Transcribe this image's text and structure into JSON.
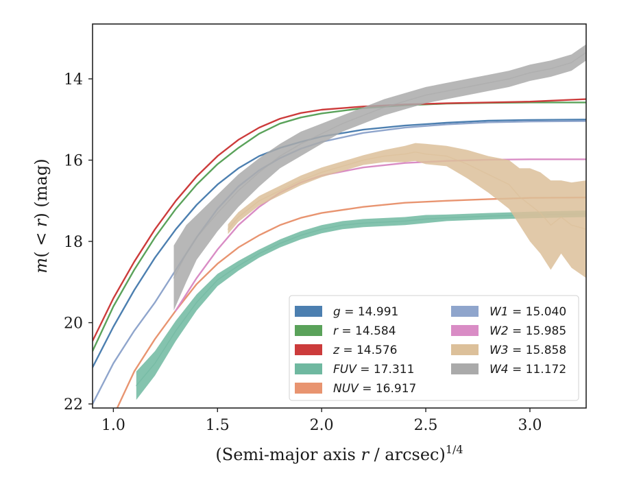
{
  "chart_data": {
    "type": "line",
    "xlabel": "(Semi-major axis r / arcsec)^1/4",
    "ylabel": "m(< r) (mag)",
    "xlim": [
      0.9,
      3.27
    ],
    "ylim": [
      22.1,
      12.65
    ],
    "y_inverted": true,
    "xticks": [
      "1.0",
      "1.5",
      "2.0",
      "2.5",
      "3.0"
    ],
    "yticks": [
      "14",
      "16",
      "18",
      "20",
      "22"
    ],
    "grid": false,
    "legend_placement": "lower-right",
    "series": [
      {
        "name": "g = 14.991",
        "color": "#4c7fb0",
        "style": "line",
        "x": [
          0.9,
          1.0,
          1.1,
          1.2,
          1.3,
          1.4,
          1.5,
          1.6,
          1.7,
          1.8,
          1.9,
          2.0,
          2.2,
          2.4,
          2.6,
          2.8,
          3.0,
          3.27
        ],
        "y": [
          21.1,
          20.1,
          19.2,
          18.4,
          17.7,
          17.1,
          16.6,
          16.2,
          15.9,
          15.7,
          15.55,
          15.42,
          15.25,
          15.15,
          15.08,
          15.03,
          15.01,
          15.0
        ]
      },
      {
        "name": "r = 14.584",
        "color": "#5aa25a",
        "style": "line",
        "x": [
          0.9,
          1.0,
          1.1,
          1.2,
          1.3,
          1.4,
          1.5,
          1.6,
          1.7,
          1.8,
          1.9,
          2.0,
          2.2,
          2.4,
          2.6,
          2.8,
          3.0,
          3.27
        ],
        "y": [
          20.7,
          19.6,
          18.7,
          17.9,
          17.2,
          16.6,
          16.1,
          15.7,
          15.35,
          15.1,
          14.95,
          14.85,
          14.72,
          14.65,
          14.61,
          14.59,
          14.58,
          14.58
        ]
      },
      {
        "name": "z = 14.576",
        "color": "#cc3b3b",
        "style": "line",
        "x": [
          0.9,
          1.0,
          1.1,
          1.2,
          1.3,
          1.4,
          1.5,
          1.6,
          1.7,
          1.8,
          1.9,
          2.0,
          2.2,
          2.4,
          2.6,
          2.8,
          3.0,
          3.27
        ],
        "y": [
          20.45,
          19.4,
          18.5,
          17.7,
          17.0,
          16.4,
          15.9,
          15.5,
          15.2,
          14.98,
          14.84,
          14.76,
          14.68,
          14.63,
          14.6,
          14.58,
          14.56,
          14.5
        ]
      },
      {
        "name": "FUV = 17.311",
        "color": "#6fb8a0",
        "style": "band",
        "x": [
          1.11,
          1.2,
          1.3,
          1.4,
          1.5,
          1.6,
          1.7,
          1.8,
          1.9,
          2.0,
          2.1,
          2.2,
          2.4,
          2.5,
          2.6,
          2.8,
          3.0,
          3.27
        ],
        "y": [
          21.55,
          21.0,
          20.2,
          19.5,
          18.95,
          18.6,
          18.3,
          18.05,
          17.85,
          17.7,
          17.6,
          17.55,
          17.5,
          17.45,
          17.42,
          17.38,
          17.35,
          17.32
        ],
        "err": [
          0.35,
          0.3,
          0.25,
          0.2,
          0.15,
          0.12,
          0.1,
          0.1,
          0.1,
          0.1,
          0.1,
          0.1,
          0.1,
          0.1,
          0.08,
          0.08,
          0.08,
          0.08
        ]
      },
      {
        "name": "NUV = 16.917",
        "color": "#e89470",
        "style": "line",
        "x": [
          1.0,
          1.1,
          1.2,
          1.3,
          1.4,
          1.5,
          1.6,
          1.7,
          1.8,
          1.9,
          2.0,
          2.2,
          2.4,
          2.6,
          2.8,
          3.0,
          3.27
        ],
        "y": [
          22.3,
          21.2,
          20.4,
          19.7,
          19.05,
          18.55,
          18.15,
          17.85,
          17.6,
          17.42,
          17.3,
          17.15,
          17.05,
          17.0,
          16.96,
          16.93,
          16.92
        ]
      },
      {
        "name": "W1 = 15.040",
        "color": "#8fa5cc",
        "style": "line",
        "x": [
          0.9,
          1.0,
          1.1,
          1.2,
          1.3,
          1.4,
          1.5,
          1.6,
          1.7,
          1.8,
          1.9,
          2.0,
          2.2,
          2.4,
          2.6,
          2.8,
          3.0,
          3.27
        ],
        "y": [
          22.0,
          21.0,
          20.2,
          19.5,
          18.7,
          17.9,
          17.2,
          16.65,
          16.25,
          15.95,
          15.72,
          15.55,
          15.33,
          15.2,
          15.12,
          15.07,
          15.05,
          15.04
        ]
      },
      {
        "name": "W2 = 15.985",
        "color": "#d98cc5",
        "style": "line",
        "x": [
          1.3,
          1.4,
          1.5,
          1.6,
          1.7,
          1.8,
          1.9,
          2.0,
          2.2,
          2.4,
          2.6,
          2.8,
          3.0,
          3.27
        ],
        "y": [
          19.7,
          18.9,
          18.2,
          17.6,
          17.15,
          16.8,
          16.55,
          16.38,
          16.18,
          16.07,
          16.02,
          15.99,
          15.98,
          15.98
        ]
      },
      {
        "name": "W3 = 15.858",
        "color": "#dcc09a",
        "style": "band",
        "x": [
          1.55,
          1.6,
          1.7,
          1.8,
          1.9,
          2.0,
          2.1,
          2.2,
          2.3,
          2.4,
          2.45,
          2.5,
          2.6,
          2.7,
          2.8,
          2.9,
          2.95,
          3.0,
          3.05,
          3.1,
          3.15,
          3.2,
          3.27
        ],
        "y": [
          17.7,
          17.4,
          17.0,
          16.75,
          16.5,
          16.3,
          16.15,
          16.0,
          15.9,
          15.85,
          15.8,
          15.85,
          15.9,
          16.1,
          16.35,
          16.6,
          16.9,
          17.1,
          17.3,
          17.6,
          17.4,
          17.6,
          17.7
        ],
        "err": [
          0.12,
          0.12,
          0.12,
          0.12,
          0.12,
          0.12,
          0.12,
          0.12,
          0.15,
          0.2,
          0.22,
          0.25,
          0.25,
          0.35,
          0.45,
          0.6,
          0.7,
          0.9,
          1.0,
          1.1,
          0.9,
          1.05,
          1.2
        ]
      },
      {
        "name": "W4 = 11.172",
        "color": "#aaaaaa",
        "style": "band",
        "x": [
          1.29,
          1.35,
          1.4,
          1.5,
          1.6,
          1.7,
          1.8,
          1.9,
          2.0,
          2.1,
          2.2,
          2.3,
          2.4,
          2.5,
          2.6,
          2.7,
          2.8,
          2.9,
          3.0,
          3.1,
          3.2,
          3.27
        ],
        "y": [
          18.9,
          18.3,
          17.9,
          17.3,
          16.75,
          16.3,
          15.9,
          15.6,
          15.35,
          15.1,
          14.9,
          14.7,
          14.55,
          14.4,
          14.3,
          14.2,
          14.1,
          14.0,
          13.85,
          13.75,
          13.6,
          13.35
        ],
        "err": [
          0.8,
          0.7,
          0.55,
          0.45,
          0.4,
          0.35,
          0.3,
          0.3,
          0.25,
          0.2,
          0.2,
          0.2,
          0.2,
          0.2,
          0.2,
          0.2,
          0.2,
          0.2,
          0.2,
          0.2,
          0.2,
          0.2
        ]
      }
    ],
    "legend": {
      "columns": [
        [
          {
            "prefix": "g",
            "text": " = 14.991",
            "color": "#4c7fb0"
          },
          {
            "prefix": "r",
            "text": " = 14.584",
            "color": "#5aa25a"
          },
          {
            "prefix": "z",
            "text": " = 14.576",
            "color": "#cc3b3b"
          },
          {
            "prefix": "FUV",
            "text": " = 17.311",
            "color": "#6fb8a0"
          },
          {
            "prefix": "NUV",
            "text": " = 16.917",
            "color": "#e89470"
          }
        ],
        [
          {
            "prefix": "W1",
            "text": " = 15.040",
            "color": "#8fa5cc"
          },
          {
            "prefix": "W2",
            "text": " = 15.985",
            "color": "#d98cc5"
          },
          {
            "prefix": "W3",
            "text": " = 15.858",
            "color": "#dcc09a"
          },
          {
            "prefix": "W4",
            "text": " = 11.172",
            "color": "#aaaaaa"
          }
        ]
      ]
    }
  }
}
